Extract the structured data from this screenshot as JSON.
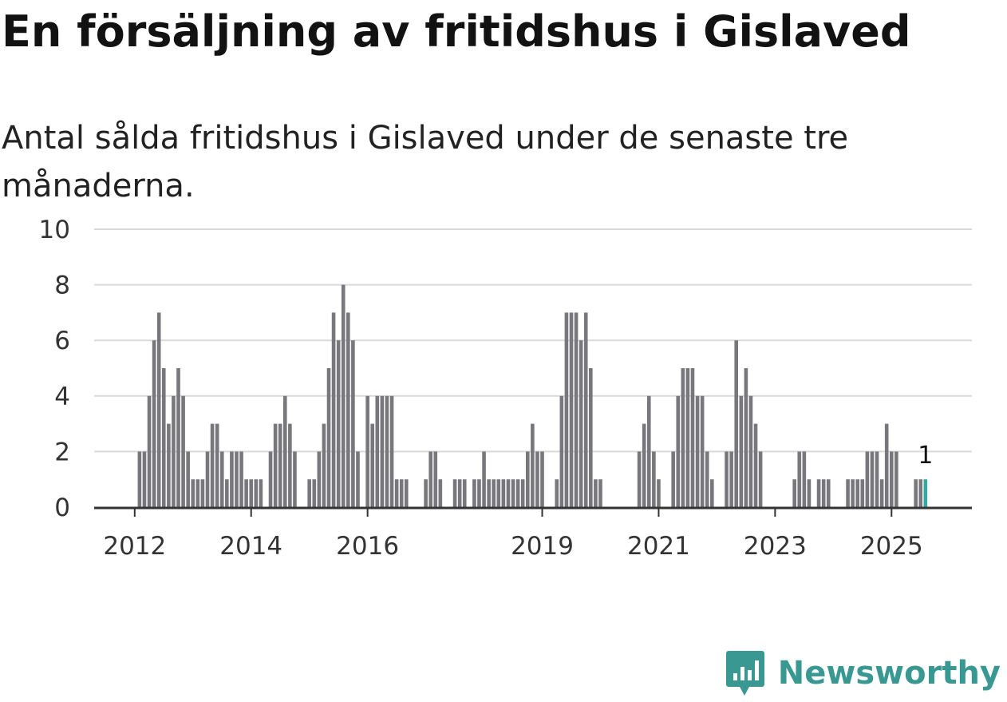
{
  "chart_data": {
    "type": "bar",
    "title": "En försäljning av fritidshus i Gislaved",
    "subtitle": "Antal sålda fritidshus i Gislaved under de senaste tre månaderna.",
    "xlabel": "",
    "ylabel": "",
    "ylim": [
      0,
      10
    ],
    "yticks": [
      0,
      2,
      4,
      6,
      8,
      10
    ],
    "grid": true,
    "x_tick_labels": [
      "2012",
      "2014",
      "2016",
      "2019",
      "2021",
      "2023",
      "2025"
    ],
    "x_tick_months": [
      0,
      24,
      48,
      84,
      108,
      132,
      156
    ],
    "first_month": "2011-12",
    "values": [
      0,
      2,
      2,
      4,
      6,
      7,
      5,
      3,
      4,
      5,
      4,
      2,
      1,
      1,
      1,
      2,
      3,
      3,
      2,
      1,
      2,
      2,
      2,
      1,
      1,
      1,
      1,
      0,
      2,
      3,
      3,
      4,
      3,
      2,
      0,
      0,
      1,
      1,
      2,
      3,
      5,
      7,
      6,
      8,
      7,
      6,
      2,
      0,
      4,
      3,
      4,
      4,
      4,
      4,
      1,
      1,
      1,
      0,
      0,
      0,
      1,
      2,
      2,
      1,
      0,
      0,
      1,
      1,
      1,
      0,
      1,
      1,
      2,
      1,
      1,
      1,
      1,
      1,
      1,
      1,
      1,
      2,
      3,
      2,
      2,
      0,
      0,
      1,
      4,
      7,
      7,
      7,
      6,
      7,
      5,
      1,
      1,
      0,
      0,
      0,
      0,
      0,
      0,
      0,
      2,
      3,
      4,
      2,
      1,
      0,
      0,
      2,
      4,
      5,
      5,
      5,
      4,
      4,
      2,
      1,
      0,
      0,
      2,
      2,
      6,
      4,
      5,
      4,
      3,
      2,
      0,
      0,
      0,
      0,
      0,
      0,
      1,
      2,
      2,
      1,
      0,
      1,
      1,
      1,
      0,
      0,
      0,
      1,
      1,
      1,
      1,
      2,
      2,
      2,
      1,
      3,
      2,
      2,
      0,
      0,
      0,
      1,
      1,
      1
    ],
    "bar_color": "#78777c",
    "highlight_color": "#36a8a0",
    "highlight_label": "1"
  },
  "brand": {
    "name": "Newsworthy",
    "icon": "newsworthy-logo-icon",
    "color": "#3a9893"
  }
}
